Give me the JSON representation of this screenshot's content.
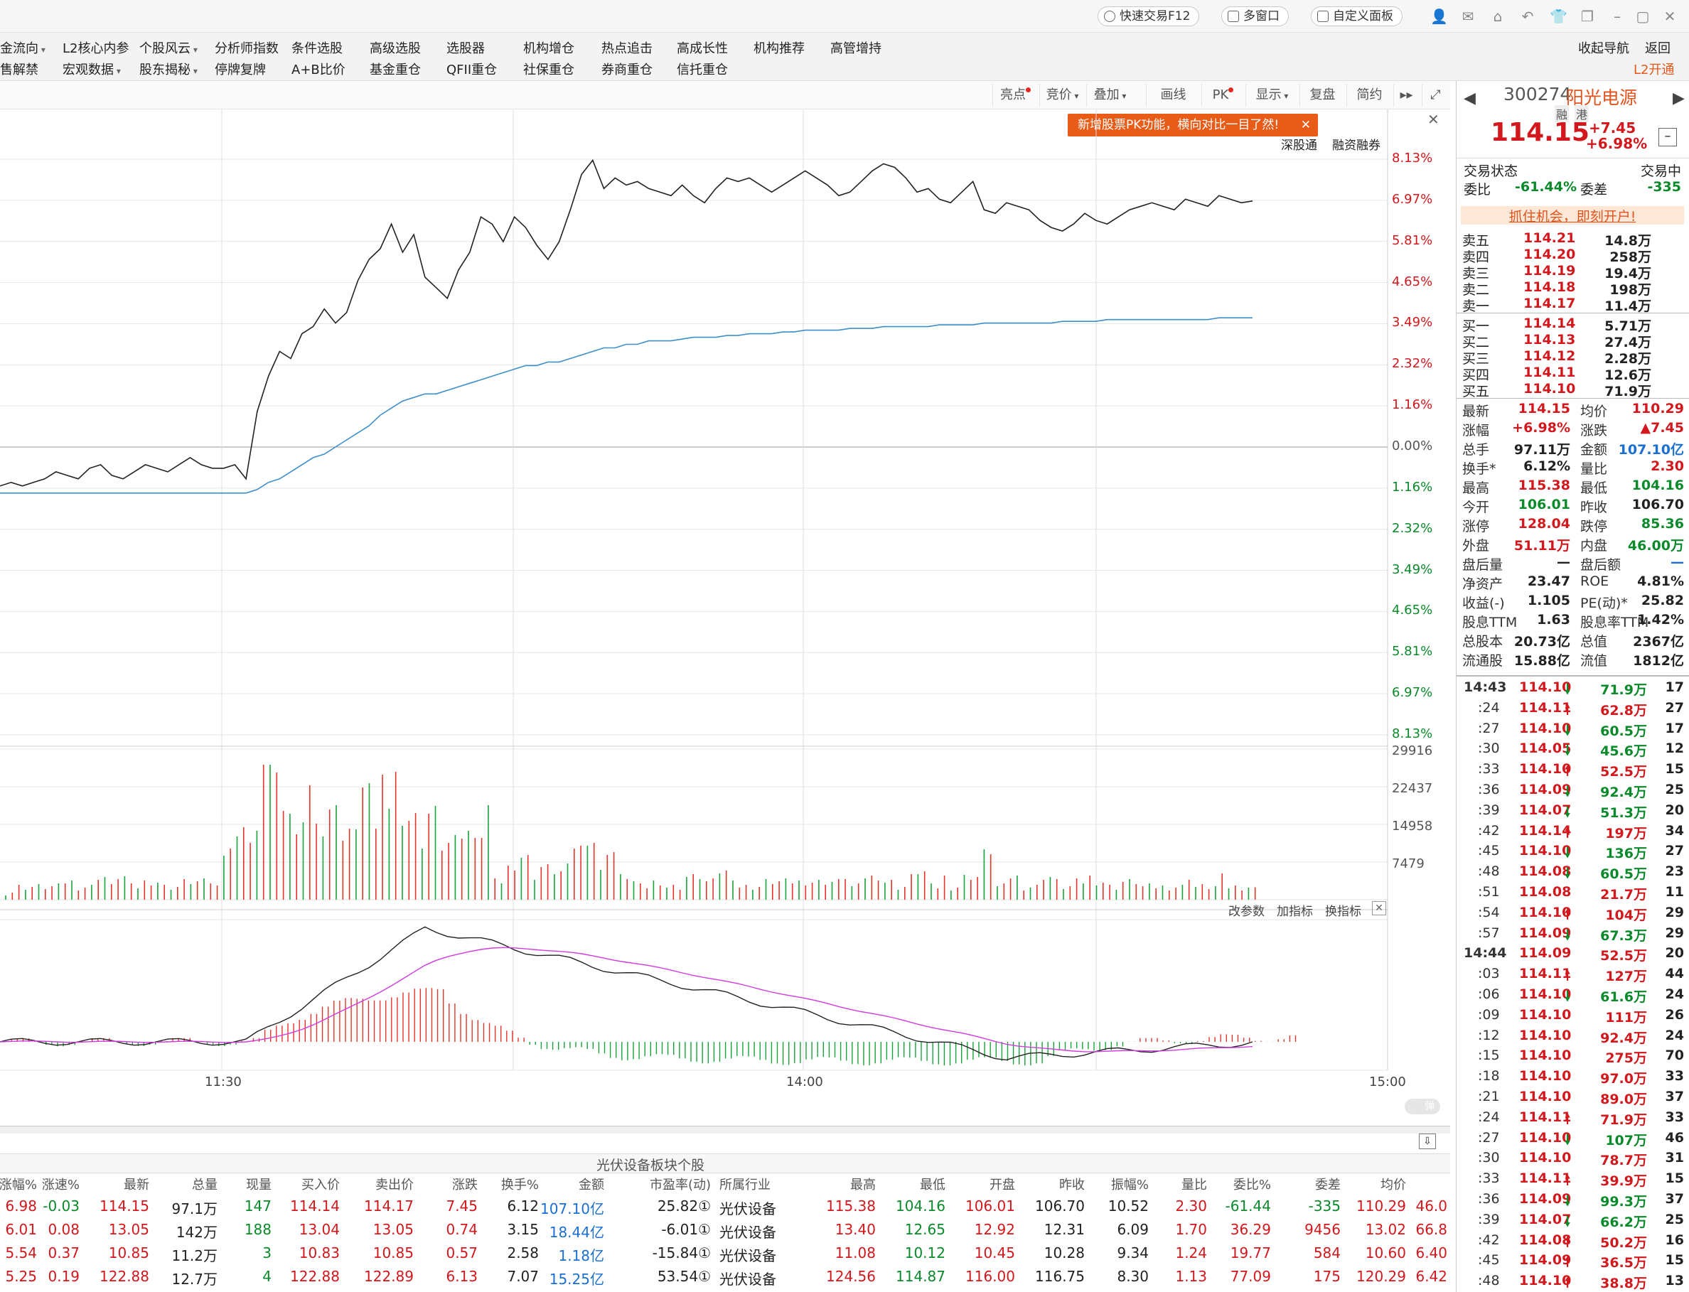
{
  "titlebar": {
    "quick_trade": "快速交易F12",
    "multi_window": "多窗口",
    "custom_panel": "自定义面板"
  },
  "menu": {
    "row1": [
      {
        "label": "金流向",
        "dropdown": true
      },
      {
        "label": "L2核心内参",
        "dropdown": false
      },
      {
        "label": "个股风云",
        "dropdown": true
      },
      {
        "label": "分析师指数",
        "dropdown": false
      },
      {
        "label": "条件选股",
        "dropdown": false
      },
      {
        "label": "高级选股",
        "dropdown": false
      },
      {
        "label": "选股器",
        "dropdown": false
      },
      {
        "label": "机构增仓",
        "dropdown": false
      },
      {
        "label": "热点追击",
        "dropdown": false
      },
      {
        "label": "高成长性",
        "dropdown": false
      },
      {
        "label": "机构推荐",
        "dropdown": false
      },
      {
        "label": "高管增持",
        "dropdown": false
      }
    ],
    "row2": [
      {
        "label": "售解禁",
        "dropdown": false
      },
      {
        "label": "宏观数据",
        "dropdown": true
      },
      {
        "label": "股东揭秘",
        "dropdown": true
      },
      {
        "label": "停牌复牌",
        "dropdown": false
      },
      {
        "label": "A+B比价",
        "dropdown": false
      },
      {
        "label": "基金重仓",
        "dropdown": false
      },
      {
        "label": "QFII重仓",
        "dropdown": false
      },
      {
        "label": "社保重仓",
        "dropdown": false
      },
      {
        "label": "券商重仓",
        "dropdown": false
      },
      {
        "label": "信托重仓",
        "dropdown": false
      }
    ],
    "right_nav": "收起导航",
    "right_back": "返回",
    "l2_open": "L2开通"
  },
  "toolbar": {
    "items": [
      "亮点",
      "竞价",
      "叠加",
      "画线",
      "PK",
      "显示",
      "复盘",
      "简约"
    ]
  },
  "tooltip": "新增股票PK功能，横向对比一目了然!",
  "chart_links": {
    "sgt": "深股通",
    "margin": "融资融券"
  },
  "indicator_links": {
    "params": "改参数",
    "add": "加指标",
    "switch": "换指标"
  },
  "chart_data": {
    "type": "line",
    "price_axis_labels": [
      "8.13%",
      "6.97%",
      "5.81%",
      "4.65%",
      "3.49%",
      "2.32%",
      "1.16%",
      "0.00%",
      "1.16%",
      "2.32%",
      "3.49%",
      "4.65%",
      "5.81%",
      "6.97%",
      "8.13%"
    ],
    "x_labels": [
      "11:30",
      "14:00",
      "15:00"
    ],
    "volume_axis_labels": [
      "29916",
      "22437",
      "14958",
      "7479"
    ],
    "ylim": [
      -8.13,
      8.13
    ],
    "series": [
      {
        "values": [
          -1.1,
          -1.0,
          -1.1,
          -1.0,
          -0.9,
          -0.7,
          -0.8,
          -0.9,
          -0.6,
          -0.5,
          -0.8,
          -0.9,
          -0.7,
          -0.5,
          -0.6,
          -0.7,
          -0.5,
          -0.3,
          -0.5,
          -0.6,
          -0.6,
          -0.5,
          -0.9,
          1.0,
          2.0,
          2.7,
          2.5,
          3.2,
          3.4,
          3.9,
          3.5,
          3.8,
          4.7,
          5.3,
          5.6,
          6.3,
          5.5,
          6.0,
          4.8,
          4.5,
          4.2,
          5.0,
          5.5,
          6.5,
          6.3,
          5.8,
          6.5,
          6.2,
          5.7,
          5.3,
          5.8,
          6.7,
          7.7,
          8.1,
          7.3,
          7.6,
          7.4,
          7.5,
          7.3,
          7.2,
          7.1,
          7.4,
          7.1,
          6.9,
          7.3,
          7.6,
          7.5,
          7.6,
          7.4,
          7.2,
          7.4,
          7.6,
          7.8,
          7.6,
          7.4,
          7.1,
          7.2,
          7.5,
          7.8,
          8.0,
          7.9,
          7.6,
          7.2,
          7.3,
          7.0,
          6.9,
          7.2,
          7.5,
          6.7,
          6.6,
          6.9,
          6.8,
          6.7,
          6.4,
          6.2,
          6.1,
          6.3,
          6.6,
          6.4,
          6.3,
          6.5,
          6.7,
          6.8,
          6.9,
          6.8,
          6.7,
          7.0,
          6.9,
          6.8,
          7.1,
          7.0,
          6.9,
          6.95
        ]
      },
      {
        "values": [
          -1.3,
          -1.3,
          -1.3,
          -1.3,
          -1.3,
          -1.3,
          -1.3,
          -1.3,
          -1.3,
          -1.3,
          -1.3,
          -1.3,
          -1.3,
          -1.3,
          -1.3,
          -1.3,
          -1.3,
          -1.3,
          -1.3,
          -1.3,
          -1.3,
          -1.3,
          -1.3,
          -1.2,
          -1.0,
          -0.9,
          -0.7,
          -0.5,
          -0.3,
          -0.2,
          0.0,
          0.2,
          0.4,
          0.6,
          0.9,
          1.1,
          1.3,
          1.4,
          1.5,
          1.5,
          1.6,
          1.7,
          1.8,
          1.9,
          2.0,
          2.1,
          2.2,
          2.3,
          2.3,
          2.4,
          2.4,
          2.5,
          2.6,
          2.7,
          2.8,
          2.8,
          2.9,
          2.9,
          3.0,
          3.0,
          3.0,
          3.05,
          3.1,
          3.1,
          3.1,
          3.15,
          3.15,
          3.2,
          3.2,
          3.2,
          3.25,
          3.25,
          3.3,
          3.3,
          3.3,
          3.3,
          3.35,
          3.35,
          3.35,
          3.4,
          3.4,
          3.4,
          3.4,
          3.4,
          3.45,
          3.45,
          3.45,
          3.45,
          3.5,
          3.5,
          3.5,
          3.5,
          3.5,
          3.5,
          3.5,
          3.55,
          3.55,
          3.55,
          3.55,
          3.6,
          3.6,
          3.6,
          3.6,
          3.6,
          3.6,
          3.6,
          3.6,
          3.6,
          3.6,
          3.65,
          3.65,
          3.65,
          3.65
        ]
      }
    ]
  },
  "stock": {
    "code": "300274",
    "name": "阳光电源",
    "tags": [
      "融",
      "港"
    ],
    "price": "114.15",
    "change": "+7.45",
    "change_pct": "+6.98%",
    "status_label": "交易状态",
    "status_value": "交易中",
    "weibi_label": "委比",
    "weibi_value": "-61.44%",
    "weicha_label": "委差",
    "weicha_value": "-335",
    "promo": "抓住机会，即刻开户!"
  },
  "order_book": {
    "asks": [
      {
        "label": "卖五",
        "price": "114.21",
        "vol": "14.8万"
      },
      {
        "label": "卖四",
        "price": "114.20",
        "vol": "258万"
      },
      {
        "label": "卖三",
        "price": "114.19",
        "vol": "19.4万"
      },
      {
        "label": "卖二",
        "price": "114.18",
        "vol": "198万"
      },
      {
        "label": "卖一",
        "price": "114.17",
        "vol": "11.4万"
      }
    ],
    "bids": [
      {
        "label": "买一",
        "price": "114.14",
        "vol": "5.71万"
      },
      {
        "label": "买二",
        "price": "114.13",
        "vol": "27.4万"
      },
      {
        "label": "买三",
        "price": "114.12",
        "vol": "2.28万"
      },
      {
        "label": "买四",
        "price": "114.11",
        "vol": "12.6万"
      },
      {
        "label": "买五",
        "price": "114.10",
        "vol": "71.9万"
      }
    ]
  },
  "stats": [
    {
      "l1": "最新",
      "v1": "114.15",
      "c1": "red",
      "l2": "均价",
      "v2": "110.29",
      "c2": "red"
    },
    {
      "l1": "涨幅",
      "v1": "+6.98%",
      "c1": "red",
      "l2": "涨跌",
      "v2": "▲7.45",
      "c2": "red"
    },
    {
      "l1": "总手",
      "v1": "97.11万",
      "c1": "dark",
      "l2": "金额",
      "v2": "107.10亿",
      "c2": "blue"
    },
    {
      "l1": "换手*",
      "v1": "6.12%",
      "c1": "dark",
      "l2": "量比",
      "v2": "2.30",
      "c2": "red"
    },
    {
      "l1": "最高",
      "v1": "115.38",
      "c1": "red",
      "l2": "最低",
      "v2": "104.16",
      "c2": "green"
    },
    {
      "l1": "今开",
      "v1": "106.01",
      "c1": "green",
      "l2": "昨收",
      "v2": "106.70",
      "c2": "dark"
    },
    {
      "l1": "涨停",
      "v1": "128.04",
      "c1": "red",
      "l2": "跌停",
      "v2": "85.36",
      "c2": "green"
    },
    {
      "l1": "外盘",
      "v1": "51.11万",
      "c1": "red",
      "l2": "内盘",
      "v2": "46.00万",
      "c2": "green"
    },
    {
      "l1": "盘后量",
      "v1": "—",
      "c1": "dark",
      "l2": "盘后额",
      "v2": "—",
      "c2": "blue"
    },
    {
      "l1": "净资产",
      "v1": "23.47",
      "c1": "dark",
      "l2": "ROE",
      "v2": "4.81%",
      "c2": "dark"
    },
    {
      "l1": "收益(-)",
      "v1": "1.105",
      "c1": "dark",
      "l2": "PE(动)*",
      "v2": "25.82",
      "c2": "dark"
    },
    {
      "l1": "股息TTM",
      "v1": "1.63",
      "c1": "dark",
      "l2": "股息率TTM",
      "v2": "1.42%",
      "c2": "dark"
    },
    {
      "l1": "总股本",
      "v1": "20.73亿",
      "c1": "dark",
      "l2": "总值",
      "v2": "2367亿",
      "c2": "dark"
    },
    {
      "l1": "流通股",
      "v1": "15.88亿",
      "c1": "dark",
      "l2": "流值",
      "v2": "1812亿",
      "c2": "dark"
    }
  ],
  "ticks": [
    {
      "t": "14:43",
      "p": "114.10",
      "d": "down",
      "v": "71.9万",
      "n": "17",
      "bold": true
    },
    {
      "t": ":24",
      "p": "114.11",
      "d": "up",
      "v": "62.8万",
      "n": "27"
    },
    {
      "t": ":27",
      "p": "114.10",
      "d": "down",
      "v": "60.5万",
      "n": "17"
    },
    {
      "t": ":30",
      "p": "114.05",
      "d": "down",
      "v": "45.6万",
      "n": "12"
    },
    {
      "t": ":33",
      "p": "114.10",
      "d": "up",
      "v": "52.5万",
      "n": "15"
    },
    {
      "t": ":36",
      "p": "114.09",
      "d": "down",
      "v": "92.4万",
      "n": "25"
    },
    {
      "t": ":39",
      "p": "114.07",
      "d": "down",
      "v": "51.3万",
      "n": "20"
    },
    {
      "t": ":42",
      "p": "114.14",
      "d": "up",
      "v": "197万",
      "n": "34"
    },
    {
      "t": ":45",
      "p": "114.10",
      "d": "down",
      "v": "136万",
      "n": "27"
    },
    {
      "t": ":48",
      "p": "114.08",
      "d": "down",
      "v": "60.5万",
      "n": "23"
    },
    {
      "t": ":51",
      "p": "114.08",
      "d": "",
      "v": "21.7万",
      "n": "11"
    },
    {
      "t": ":54",
      "p": "114.10",
      "d": "up",
      "v": "104万",
      "n": "29"
    },
    {
      "t": ":57",
      "p": "114.09",
      "d": "down",
      "v": "67.3万",
      "n": "29"
    },
    {
      "t": "14:44",
      "p": "114.09",
      "d": "",
      "v": "52.5万",
      "n": "20",
      "bold": true
    },
    {
      "t": ":03",
      "p": "114.11",
      "d": "up",
      "v": "127万",
      "n": "44"
    },
    {
      "t": ":06",
      "p": "114.10",
      "d": "down",
      "v": "61.6万",
      "n": "24"
    },
    {
      "t": ":09",
      "p": "114.10",
      "d": "",
      "v": "111万",
      "n": "26"
    },
    {
      "t": ":12",
      "p": "114.10",
      "d": "",
      "v": "92.4万",
      "n": "24"
    },
    {
      "t": ":15",
      "p": "114.10",
      "d": "",
      "v": "275万",
      "n": "70"
    },
    {
      "t": ":18",
      "p": "114.10",
      "d": "",
      "v": "97.0万",
      "n": "33"
    },
    {
      "t": ":21",
      "p": "114.10",
      "d": "",
      "v": "89.0万",
      "n": "37"
    },
    {
      "t": ":24",
      "p": "114.11",
      "d": "up",
      "v": "71.9万",
      "n": "33"
    },
    {
      "t": ":27",
      "p": "114.10",
      "d": "down",
      "v": "107万",
      "n": "46"
    },
    {
      "t": ":30",
      "p": "114.10",
      "d": "",
      "v": "78.7万",
      "n": "31"
    },
    {
      "t": ":33",
      "p": "114.11",
      "d": "up",
      "v": "39.9万",
      "n": "15"
    },
    {
      "t": ":36",
      "p": "114.09",
      "d": "down",
      "v": "99.3万",
      "n": "37"
    },
    {
      "t": ":39",
      "p": "114.07",
      "d": "down",
      "v": "66.2万",
      "n": "25"
    },
    {
      "t": ":42",
      "p": "114.08",
      "d": "up",
      "v": "50.2万",
      "n": "16"
    },
    {
      "t": ":45",
      "p": "114.09",
      "d": "up",
      "v": "36.5万",
      "n": "15"
    },
    {
      "t": ":48",
      "p": "114.10",
      "d": "up",
      "v": "38.8万",
      "n": "13"
    }
  ],
  "sector": {
    "title": "光伏设备板块个股",
    "headers": [
      "涨幅%",
      "涨速%",
      "最新",
      "总量",
      "现量",
      "买入价",
      "卖出价",
      "涨跌",
      "换手%",
      "金额",
      "市盈率(动)",
      "所属行业",
      "最高",
      "最低",
      "开盘",
      "昨收",
      "振幅%",
      "量比",
      "委比%",
      "委差",
      "均价"
    ],
    "rows": [
      [
        "6.98",
        "-0.03",
        "114.15",
        "97.1万",
        "147",
        "114.14",
        "114.17",
        "7.45",
        "6.12",
        "107.10亿",
        "25.82①",
        "光伏设备",
        "115.38",
        "104.16",
        "106.01",
        "106.70",
        "10.52",
        "2.30",
        "-61.44",
        "-335",
        "110.29",
        "46.0"
      ],
      [
        "6.01",
        "0.08",
        "13.05",
        "142万",
        "188",
        "13.04",
        "13.05",
        "0.74",
        "3.15",
        "18.44亿",
        "-6.01①",
        "光伏设备",
        "13.40",
        "12.65",
        "12.92",
        "12.31",
        "6.09",
        "1.70",
        "36.29",
        "9456",
        "13.02",
        "66.8"
      ],
      [
        "5.54",
        "0.37",
        "10.85",
        "11.2万",
        "3",
        "10.83",
        "10.85",
        "0.57",
        "2.58",
        "1.18亿",
        "-15.84①",
        "光伏设备",
        "11.08",
        "10.12",
        "10.45",
        "10.28",
        "9.34",
        "1.24",
        "19.77",
        "584",
        "10.60",
        "6.40"
      ],
      [
        "5.25",
        "0.19",
        "122.88",
        "12.7万",
        "4",
        "122.88",
        "122.89",
        "6.13",
        "7.07",
        "15.25亿",
        "53.54①",
        "光伏设备",
        "124.56",
        "114.87",
        "116.00",
        "116.75",
        "8.30",
        "1.13",
        "77.09",
        "175",
        "120.29",
        "6.42"
      ]
    ]
  }
}
